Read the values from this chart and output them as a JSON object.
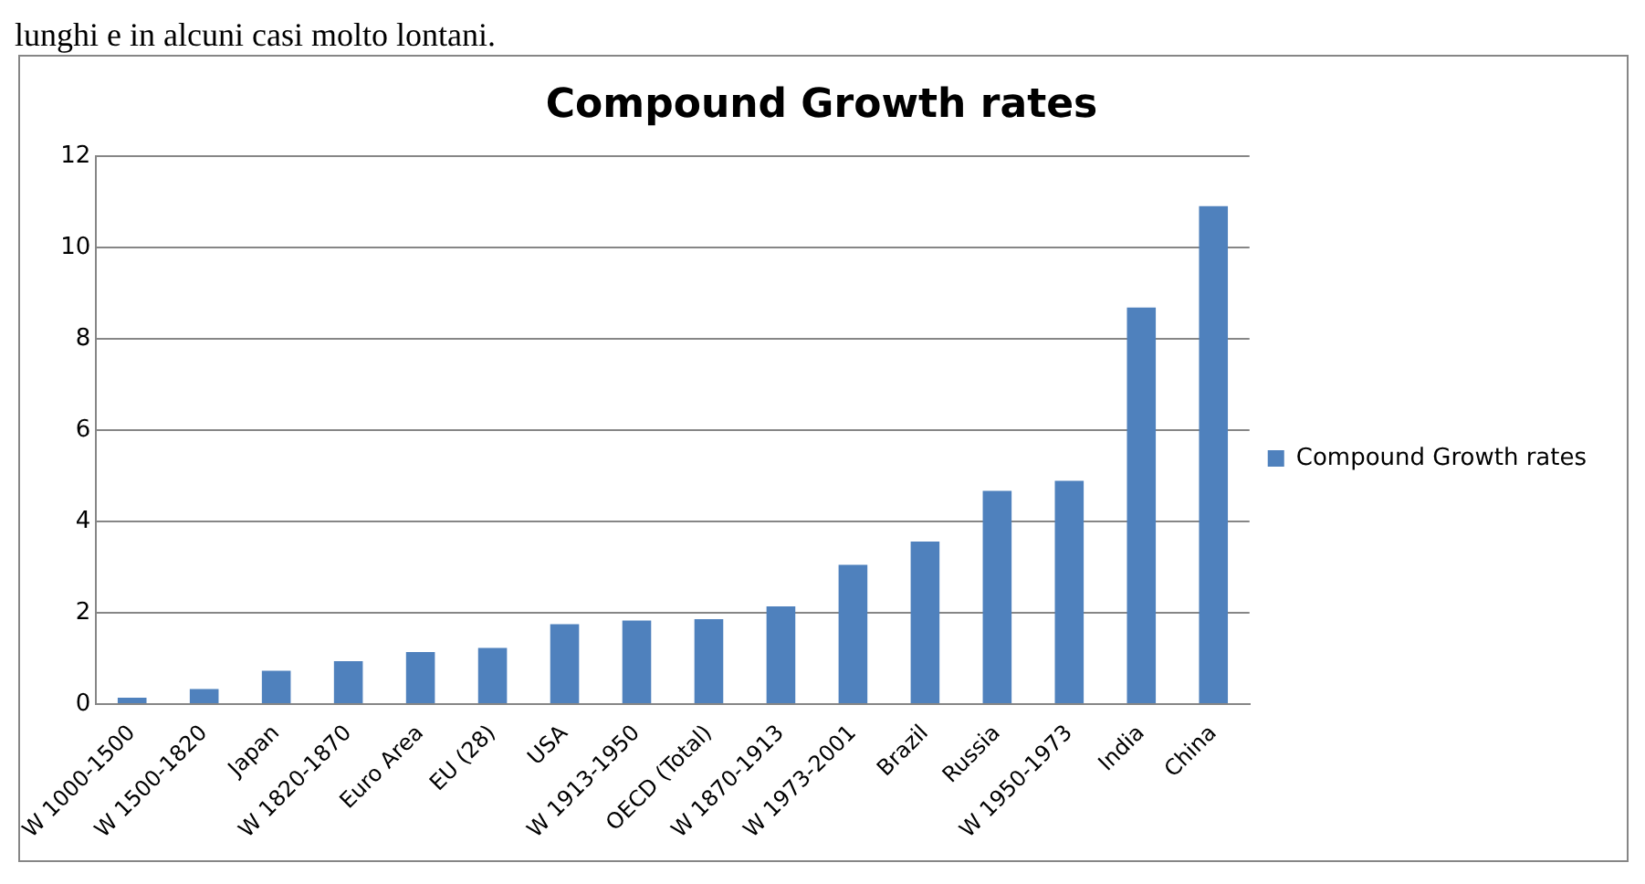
{
  "chart_data": {
    "type": "bar",
    "title": "Compound Growth rates",
    "categories": [
      "W 1000-1500",
      "W 1500-1820",
      "Japan",
      "W 1820-1870",
      "Euro Area",
      "EU (28)",
      "USA",
      "W 1913-1950",
      "OECD (Total)",
      "W 1870-1913",
      "W 1973-2001",
      "Brazil",
      "Russia",
      "W 1950-1973",
      "India",
      "China"
    ],
    "series": [
      {
        "name": "Compound Growth rates",
        "color": "#4f81bd",
        "values": [
          0.14,
          0.33,
          0.73,
          0.94,
          1.14,
          1.23,
          1.75,
          1.83,
          1.86,
          2.14,
          3.05,
          3.56,
          4.67,
          4.89,
          8.68,
          10.9
        ]
      }
    ],
    "ylim": [
      0,
      12
    ],
    "yticks": [
      0,
      2,
      4,
      6,
      8,
      10,
      12
    ],
    "grid": "y",
    "legend": "right",
    "annotations": [
      "lunghi e in alcuni casi molto lontani."
    ]
  }
}
